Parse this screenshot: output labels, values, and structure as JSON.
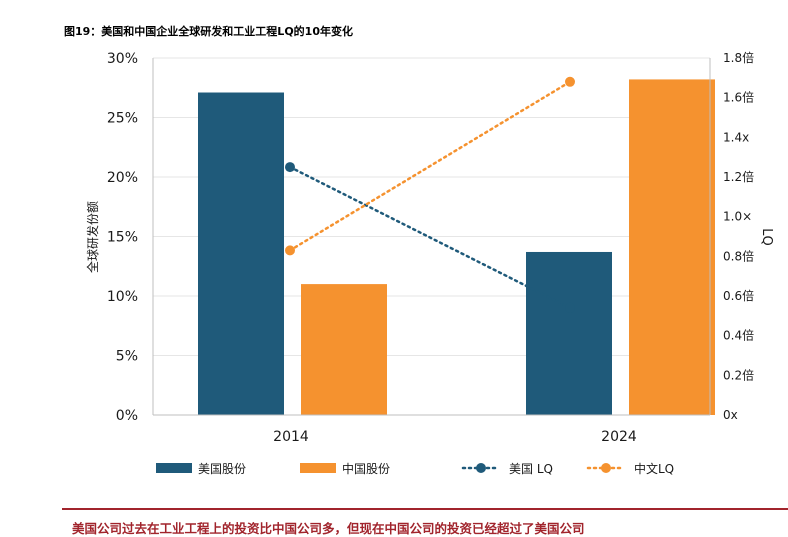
{
  "title": "图19：美国和中国企业全球研发和工业工程LQ的10年变化",
  "footer_text": "美国公司过去在工业工程上的投资比中国公司多，但现在中国公司的投资已经超过了美国公司",
  "colors": {
    "us": "#1f5a7a",
    "china": "#f5922f",
    "accent": "#a1242c",
    "axis": "#bfbfbf"
  },
  "chart_data": {
    "type": "bar",
    "categories": [
      "2014",
      "2024"
    ],
    "series": [
      {
        "name": "美国股份",
        "values": [
          27.1,
          13.7
        ],
        "axis": "left",
        "kind": "bar"
      },
      {
        "name": "中国股份",
        "values": [
          11.0,
          28.2
        ],
        "axis": "left",
        "kind": "bar"
      },
      {
        "name": "美国 LQ",
        "values": [
          1.25,
          0.54
        ],
        "axis": "right",
        "kind": "line"
      },
      {
        "name": "中文LQ",
        "values": [
          0.83,
          1.68
        ],
        "axis": "right",
        "kind": "line"
      }
    ],
    "ylabel": "全球研发份额",
    "y2label": "LQ",
    "ylim": [
      0,
      30
    ],
    "y2lim": [
      0,
      1.8
    ],
    "yticks": [
      "0%",
      "5%",
      "10%",
      "15%",
      "20%",
      "25%",
      "30%"
    ],
    "y2ticks": [
      "0x",
      "0.2倍",
      "0.4倍",
      "0.6倍",
      "0.8倍",
      "1.0×",
      "1.2倍",
      "1.4x",
      "1.6倍",
      "1.8倍"
    ],
    "legend_position": "bottom"
  }
}
